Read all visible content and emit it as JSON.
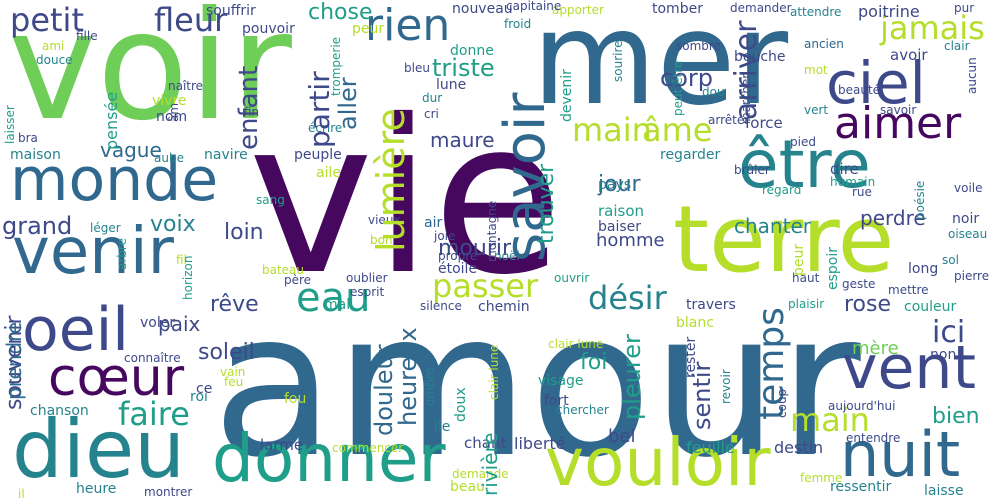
{
  "palette": {
    "purple": "#46085f",
    "indigo": "#3e4989",
    "steel": "#31688e",
    "teal": "#25838e",
    "sea": "#1f9e89",
    "green": "#35b779",
    "lime": "#6ece58",
    "yellow": "#b5de2b"
  },
  "words": [
    {
      "t": "vie",
      "c": "purple"
    },
    {
      "t": "amour",
      "c": "steel"
    },
    {
      "t": "voir",
      "c": "lime"
    },
    {
      "t": "mer",
      "c": "steel"
    },
    {
      "t": "terre",
      "c": "yellow"
    },
    {
      "t": "donner",
      "c": "sea"
    },
    {
      "t": "vouloir",
      "c": "yellow"
    },
    {
      "t": "monde",
      "c": "steel"
    },
    {
      "t": "venir",
      "c": "steel"
    },
    {
      "t": "dieu",
      "c": "teal"
    },
    {
      "t": "nuit",
      "c": "steel"
    },
    {
      "t": "être",
      "c": "teal"
    },
    {
      "t": "ciel",
      "c": "indigo"
    },
    {
      "t": "aimer",
      "c": "purple"
    },
    {
      "t": "vent",
      "c": "indigo"
    },
    {
      "t": "savoir",
      "c": "steel"
    },
    {
      "t": "cœur",
      "c": "purple"
    },
    {
      "t": "oeil",
      "c": "indigo"
    },
    {
      "t": "petit",
      "c": "indigo"
    },
    {
      "t": "fleur",
      "c": "indigo"
    },
    {
      "t": "rien",
      "c": "steel"
    },
    {
      "t": "jamais",
      "c": "yellow"
    },
    {
      "t": "eau",
      "c": "sea"
    },
    {
      "t": "passer",
      "c": "yellow"
    },
    {
      "t": "désir",
      "c": "teal"
    },
    {
      "t": "temps",
      "c": "steel"
    },
    {
      "t": "main",
      "c": "yellow"
    },
    {
      "t": "mort",
      "c": "yellow"
    },
    {
      "t": "âme",
      "c": "yellow"
    },
    {
      "t": "lumière",
      "c": "yellow"
    },
    {
      "t": "faire",
      "c": "sea"
    },
    {
      "t": "chose",
      "c": "sea"
    },
    {
      "t": "triste",
      "c": "sea"
    },
    {
      "t": "corp",
      "c": "indigo"
    },
    {
      "t": "arriver",
      "c": "indigo"
    },
    {
      "t": "partir",
      "c": "indigo"
    },
    {
      "t": "aller",
      "c": "steel"
    },
    {
      "t": "enfant",
      "c": "indigo"
    },
    {
      "t": "vague",
      "c": "steel"
    },
    {
      "t": "voix",
      "c": "teal"
    },
    {
      "t": "grand",
      "c": "indigo"
    },
    {
      "t": "loin",
      "c": "indigo"
    },
    {
      "t": "homme",
      "c": "indigo"
    },
    {
      "t": "chanter",
      "c": "teal"
    },
    {
      "t": "perdre",
      "c": "indigo"
    },
    {
      "t": "jour",
      "c": "steel"
    },
    {
      "t": "trouver",
      "c": "sea"
    },
    {
      "t": "maure",
      "c": "indigo"
    },
    {
      "t": "mourir",
      "c": "indigo"
    },
    {
      "t": "souvenir",
      "c": "indigo"
    },
    {
      "t": "rêve",
      "c": "indigo"
    },
    {
      "t": "paix",
      "c": "indigo"
    },
    {
      "t": "soleil",
      "c": "indigo"
    },
    {
      "t": "ici",
      "c": "indigo"
    },
    {
      "t": "rose",
      "c": "indigo"
    },
    {
      "t": "foi",
      "c": "sea"
    },
    {
      "t": "douleur",
      "c": "steel"
    },
    {
      "t": "heureux",
      "c": "steel"
    },
    {
      "t": "pleurer",
      "c": "sea"
    },
    {
      "t": "sentir",
      "c": "indigo"
    },
    {
      "t": "bien",
      "c": "sea"
    },
    {
      "t": "mère",
      "c": "lime"
    },
    {
      "t": "prendre",
      "c": "steel"
    },
    {
      "t": "chanson",
      "c": "teal"
    },
    {
      "t": "bel",
      "c": "indigo"
    },
    {
      "t": "rivière",
      "c": "sea"
    },
    {
      "t": "liberté",
      "c": "indigo"
    },
    {
      "t": "chant",
      "c": "indigo"
    },
    {
      "t": "feuille",
      "c": "sea"
    },
    {
      "t": "destin",
      "c": "indigo"
    },
    {
      "t": "heure",
      "c": "teal"
    },
    {
      "t": "beau",
      "c": "yellow"
    },
    {
      "t": "larme",
      "c": "indigo"
    },
    {
      "t": "ressentir",
      "c": "teal"
    },
    {
      "t": "laisse",
      "c": "teal"
    },
    {
      "t": "force",
      "c": "indigo"
    },
    {
      "t": "poitrine",
      "c": "indigo"
    },
    {
      "t": "avoir",
      "c": "indigo"
    },
    {
      "t": "bouche",
      "c": "indigo"
    },
    {
      "t": "regarder",
      "c": "teal"
    },
    {
      "t": "dire",
      "c": "indigo"
    },
    {
      "t": "raison",
      "c": "sea"
    },
    {
      "t": "pays",
      "c": "teal"
    },
    {
      "t": "baiser",
      "c": "indigo"
    },
    {
      "t": "air",
      "c": "steel"
    },
    {
      "t": "étoile",
      "c": "indigo"
    },
    {
      "t": "nom",
      "c": "indigo"
    },
    {
      "t": "peuple",
      "c": "indigo"
    },
    {
      "t": "navire",
      "c": "teal"
    },
    {
      "t": "maison",
      "c": "teal"
    },
    {
      "t": "pensée",
      "c": "sea"
    },
    {
      "t": "vivre",
      "c": "yellow"
    },
    {
      "t": "souffrir",
      "c": "indigo"
    },
    {
      "t": "pouvoir",
      "c": "indigo"
    },
    {
      "t": "nouveau",
      "c": "indigo"
    },
    {
      "t": "donne",
      "c": "sea"
    },
    {
      "t": "lune",
      "c": "indigo"
    },
    {
      "t": "tomber",
      "c": "indigo"
    },
    {
      "t": "devenir",
      "c": "sea"
    },
    {
      "t": "fou",
      "c": "yellow"
    },
    {
      "t": "fort",
      "c": "indigo"
    },
    {
      "t": "visage",
      "c": "sea"
    },
    {
      "t": "noir",
      "c": "indigo"
    },
    {
      "t": "long",
      "c": "indigo"
    },
    {
      "t": "couleur",
      "c": "sea"
    },
    {
      "t": "aile",
      "c": "yellow"
    },
    {
      "t": "chemin",
      "c": "indigo"
    },
    {
      "t": "travers",
      "c": "indigo"
    },
    {
      "t": "blanc",
      "c": "yellow"
    },
    {
      "t": "non",
      "c": "indigo"
    },
    {
      "t": "quelque",
      "c": "sea"
    },
    {
      "t": "doux",
      "c": "sea"
    },
    {
      "t": "roi",
      "c": "teal"
    },
    {
      "t": "ce",
      "c": "indigo"
    },
    {
      "t": "île",
      "c": "teal"
    },
    {
      "t": "voler",
      "c": "indigo"
    },
    {
      "t": "mal",
      "c": "sea"
    },
    {
      "t": "espoir",
      "c": "sea"
    },
    {
      "t": "peur",
      "c": "yellow"
    },
    {
      "t": "ami",
      "c": "yellow"
    },
    {
      "t": "fille",
      "c": "indigo"
    },
    {
      "t": "douce",
      "c": "teal"
    },
    {
      "t": "naître",
      "c": "indigo"
    },
    {
      "t": "laisser",
      "c": "sea"
    },
    {
      "t": "aube",
      "c": "teal"
    },
    {
      "t": "bra",
      "c": "indigo"
    },
    {
      "t": "fin",
      "c": "indigo"
    },
    {
      "t": "écrire",
      "c": "teal"
    },
    {
      "t": "cri",
      "c": "indigo"
    },
    {
      "t": "dur",
      "c": "teal"
    },
    {
      "t": "bleu",
      "c": "indigo"
    },
    {
      "t": "tromperie",
      "c": "sea"
    },
    {
      "t": "froid",
      "c": "teal"
    },
    {
      "t": "apporter",
      "c": "yellow"
    },
    {
      "t": "sourire",
      "c": "teal"
    },
    {
      "t": "demander",
      "c": "indigo"
    },
    {
      "t": "attendre",
      "c": "teal"
    },
    {
      "t": "pur",
      "c": "indigo"
    },
    {
      "t": "clair",
      "c": "teal"
    },
    {
      "t": "ancien",
      "c": "steel"
    },
    {
      "t": "mot",
      "c": "yellow"
    },
    {
      "t": "sombre",
      "c": "indigo"
    },
    {
      "t": "peut être",
      "c": "sea"
    },
    {
      "t": "dou",
      "c": "teal"
    },
    {
      "t": "marcher",
      "c": "indigo"
    },
    {
      "t": "aucun",
      "c": "indigo"
    },
    {
      "t": "beauté",
      "c": "indigo"
    },
    {
      "t": "vert",
      "c": "teal"
    },
    {
      "t": "savoir",
      "c": "indigo"
    },
    {
      "t": "arrêter",
      "c": "indigo"
    },
    {
      "t": "pied",
      "c": "indigo"
    },
    {
      "t": "brûler",
      "c": "indigo"
    },
    {
      "t": "regard",
      "c": "sea"
    },
    {
      "t": "humain",
      "c": "sea"
    },
    {
      "t": "rue",
      "c": "indigo"
    },
    {
      "t": "poésie",
      "c": "teal"
    },
    {
      "t": "voile",
      "c": "indigo"
    },
    {
      "t": "oiseau",
      "c": "teal"
    },
    {
      "t": "sol",
      "c": "teal"
    },
    {
      "t": "haut",
      "c": "indigo"
    },
    {
      "t": "geste",
      "c": "indigo"
    },
    {
      "t": "mettre",
      "c": "indigo"
    },
    {
      "t": "pierre",
      "c": "indigo"
    },
    {
      "t": "plaisir",
      "c": "sea"
    },
    {
      "t": "reste",
      "c": "indigo"
    },
    {
      "t": "sang",
      "c": "sea"
    },
    {
      "t": "léger",
      "c": "teal"
    },
    {
      "t": "arbre",
      "c": "sea"
    },
    {
      "t": "bateau",
      "c": "yellow"
    },
    {
      "t": "fil",
      "c": "yellow"
    },
    {
      "t": "horizon",
      "c": "sea"
    },
    {
      "t": "père",
      "c": "indigo"
    },
    {
      "t": "connaître",
      "c": "indigo"
    },
    {
      "t": "vieux",
      "c": "indigo"
    },
    {
      "t": "bon",
      "c": "yellow"
    },
    {
      "t": "joie",
      "c": "indigo"
    },
    {
      "t": "montagne",
      "c": "indigo"
    },
    {
      "t": "noël",
      "c": "teal"
    },
    {
      "t": "oublier",
      "c": "indigo"
    },
    {
      "t": "esprit",
      "c": "indigo"
    },
    {
      "t": "ouvrir",
      "c": "sea"
    },
    {
      "t": "silence",
      "c": "indigo"
    },
    {
      "t": "vain",
      "c": "yellow"
    },
    {
      "t": "feu",
      "c": "yellow"
    },
    {
      "t": "ombre",
      "c": "teal"
    },
    {
      "t": "clair lune",
      "c": "yellow"
    },
    {
      "t": "rester",
      "c": "indigo"
    },
    {
      "t": "revoir",
      "c": "teal"
    },
    {
      "t": "chercher",
      "c": "teal"
    },
    {
      "t": "coup",
      "c": "indigo"
    },
    {
      "t": "aujourd'hui",
      "c": "indigo"
    },
    {
      "t": "entendre",
      "c": "indigo"
    },
    {
      "t": "commencer",
      "c": "yellow"
    },
    {
      "t": "demande",
      "c": "yellow"
    },
    {
      "t": "femme",
      "c": "yellow"
    },
    {
      "t": "il",
      "c": "yellow"
    },
    {
      "t": "montrer",
      "c": "indigo"
    },
    {
      "t": "capitaine",
      "c": "indigo"
    },
    {
      "t": "propre",
      "c": "indigo"
    },
    {
      "t": "âm",
      "c": "indigo"
    },
    {
      "t": "dormir",
      "c": "yellow"
    }
  ]
}
